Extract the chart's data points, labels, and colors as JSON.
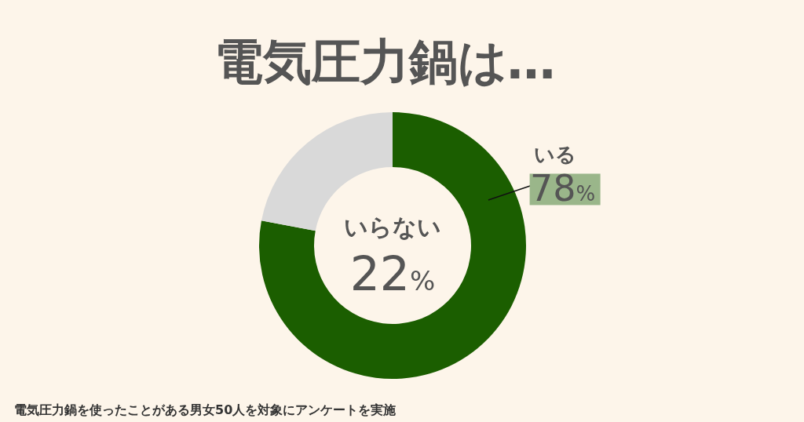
{
  "chart_data": {
    "type": "donut",
    "title": "電気圧力鍋は…",
    "categories": [
      "いる",
      "いらない"
    ],
    "values": [
      78,
      22
    ],
    "colors": [
      "#1b5e00",
      "#d9d9d9"
    ],
    "value_labels": [
      "78%",
      "22%"
    ],
    "annotations": [
      "電気圧力鍋を使ったことがある男女50人を対象にアンケートを実施"
    ]
  }
}
